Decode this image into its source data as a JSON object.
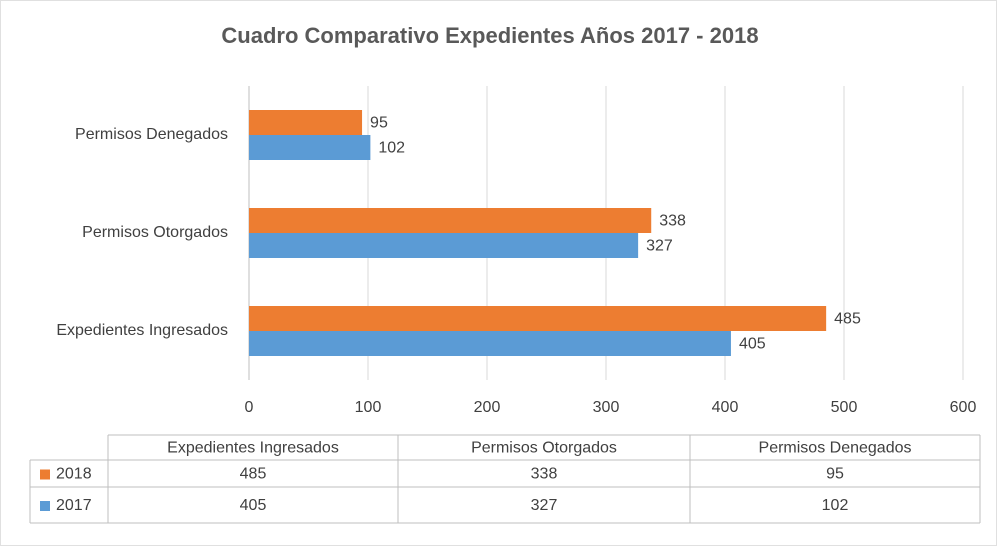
{
  "chart_data": {
    "type": "hbar",
    "title": "Cuadro Comparativo Expedientes Años 2017 - 2018",
    "categories": [
      "Expedientes Ingresados",
      "Permisos Otorgados",
      "Permisos Denegados"
    ],
    "series": [
      {
        "name": "2018",
        "color": "#ed7d31",
        "values": [
          485,
          338,
          95
        ]
      },
      {
        "name": "2017",
        "color": "#5b9bd5",
        "values": [
          405,
          327,
          102
        ]
      }
    ],
    "xlim": [
      0,
      600
    ],
    "xticks": [
      0,
      100,
      200,
      300,
      400,
      500,
      600
    ],
    "grid": true,
    "data_table": true
  }
}
